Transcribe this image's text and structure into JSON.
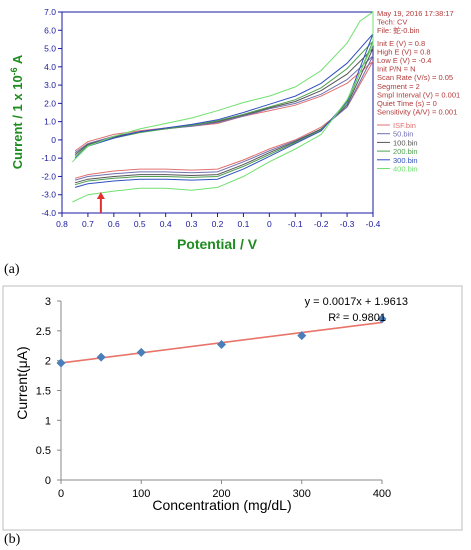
{
  "panel_labels": {
    "a": "(a)",
    "b": "(b)"
  },
  "chart_data": [
    {
      "type": "line",
      "title": "",
      "xlabel": "Potential / V",
      "ylabel": "Current / 1 x 10-6 A",
      "ylabel_parts": {
        "main": "Current / 1 x 10",
        "sup": "-6",
        "unit": " A"
      },
      "xlim": [
        0.8,
        -0.4
      ],
      "ylim": [
        -4.0,
        7.0
      ],
      "x_inverted": true,
      "xticks": [
        0.8,
        0.7,
        0.6,
        0.5,
        0.4,
        0.3,
        0.2,
        0.1,
        0,
        -0.1,
        -0.2,
        -0.3,
        -0.4
      ],
      "yticks": [
        7.0,
        6.0,
        5.0,
        4.0,
        3.0,
        2.0,
        1.0,
        0,
        -1.0,
        -2.0,
        -3.0,
        -4.0
      ],
      "xtick_labels": [
        "0.8",
        "0.7",
        "0.6",
        "0.5",
        "0.4",
        "0.3",
        "0.2",
        "0.1",
        "0",
        "-0.1",
        "-0.2",
        "-0.3",
        "-0.4"
      ],
      "ytick_labels": [
        "7.0",
        "6.0",
        "5.0",
        "4.0",
        "3.0",
        "2.0",
        "1.0",
        "0",
        "-1.0",
        "-2.0",
        "-3.0",
        "-4.0"
      ],
      "grid": false,
      "annotation_arrow": {
        "x": 0.65,
        "y_from": -4.0,
        "y_to": -2.85,
        "color": "#e03030"
      },
      "info_lines": [
        "May 19, 2016   17:38:17",
        "Tech: CV",
        "File: 蛇-0.bin",
        "",
        "Init E (V) = 0.8",
        "High E (V) = 0.8",
        "Low E (V) = -0.4",
        "Init P/N = N",
        "Scan Rate (V/s) = 0.05",
        "Segment = 2",
        "Smpl Interval (V) = 0.001",
        "Quiet Time (s) = 0",
        "Sensitivity (A/V) = 0.001"
      ],
      "legend_position": "right",
      "series": [
        {
          "name": "ISF.bin",
          "color": "#e07070",
          "x_switch": 0.75,
          "upper": [
            [
              0.75,
              -0.6
            ],
            [
              0.7,
              -0.1
            ],
            [
              0.6,
              0.3
            ],
            [
              0.5,
              0.5
            ],
            [
              0.4,
              0.65
            ],
            [
              0.3,
              0.75
            ],
            [
              0.2,
              0.9
            ],
            [
              0.1,
              1.3
            ],
            [
              0.0,
              1.6
            ],
            [
              -0.1,
              1.9
            ],
            [
              -0.2,
              2.4
            ],
            [
              -0.3,
              3.1
            ],
            [
              -0.4,
              4.3
            ]
          ],
          "lower": [
            [
              0.75,
              -2.1
            ],
            [
              0.7,
              -1.9
            ],
            [
              0.6,
              -1.7
            ],
            [
              0.5,
              -1.6
            ],
            [
              0.4,
              -1.6
            ],
            [
              0.3,
              -1.65
            ],
            [
              0.2,
              -1.6
            ],
            [
              0.1,
              -1.1
            ],
            [
              0.0,
              -0.5
            ],
            [
              -0.1,
              0.0
            ],
            [
              -0.2,
              0.7
            ],
            [
              -0.3,
              1.8
            ],
            [
              -0.4,
              4.3
            ]
          ]
        },
        {
          "name": "50.bin",
          "color": "#7070b0",
          "x_switch": 0.75,
          "upper": [
            [
              0.75,
              -0.7
            ],
            [
              0.7,
              -0.2
            ],
            [
              0.6,
              0.2
            ],
            [
              0.5,
              0.45
            ],
            [
              0.4,
              0.6
            ],
            [
              0.3,
              0.75
            ],
            [
              0.2,
              0.95
            ],
            [
              0.1,
              1.3
            ],
            [
              0.0,
              1.7
            ],
            [
              -0.1,
              2.0
            ],
            [
              -0.2,
              2.5
            ],
            [
              -0.3,
              3.3
            ],
            [
              -0.4,
              4.6
            ]
          ],
          "lower": [
            [
              0.75,
              -2.2
            ],
            [
              0.7,
              -2.0
            ],
            [
              0.6,
              -1.85
            ],
            [
              0.5,
              -1.75
            ],
            [
              0.4,
              -1.75
            ],
            [
              0.3,
              -1.8
            ],
            [
              0.2,
              -1.75
            ],
            [
              0.1,
              -1.2
            ],
            [
              0.0,
              -0.6
            ],
            [
              -0.1,
              -0.05
            ],
            [
              -0.2,
              0.6
            ],
            [
              -0.3,
              1.8
            ],
            [
              -0.4,
              4.6
            ]
          ]
        },
        {
          "name": "100.bin",
          "color": "#555555",
          "x_switch": 0.75,
          "upper": [
            [
              0.75,
              -0.8
            ],
            [
              0.7,
              -0.25
            ],
            [
              0.6,
              0.15
            ],
            [
              0.5,
              0.45
            ],
            [
              0.4,
              0.6
            ],
            [
              0.3,
              0.8
            ],
            [
              0.2,
              1.0
            ],
            [
              0.1,
              1.35
            ],
            [
              0.0,
              1.75
            ],
            [
              -0.1,
              2.1
            ],
            [
              -0.2,
              2.7
            ],
            [
              -0.3,
              3.6
            ],
            [
              -0.4,
              5.0
            ]
          ],
          "lower": [
            [
              0.75,
              -2.35
            ],
            [
              0.7,
              -2.15
            ],
            [
              0.6,
              -2.0
            ],
            [
              0.5,
              -1.9
            ],
            [
              0.4,
              -1.9
            ],
            [
              0.3,
              -1.95
            ],
            [
              0.2,
              -1.9
            ],
            [
              0.1,
              -1.35
            ],
            [
              0.0,
              -0.7
            ],
            [
              -0.1,
              -0.1
            ],
            [
              -0.2,
              0.6
            ],
            [
              -0.3,
              1.9
            ],
            [
              -0.4,
              5.0
            ]
          ]
        },
        {
          "name": "200.bin",
          "color": "#50a050",
          "x_switch": 0.75,
          "upper": [
            [
              0.75,
              -0.9
            ],
            [
              0.7,
              -0.3
            ],
            [
              0.6,
              0.1
            ],
            [
              0.5,
              0.4
            ],
            [
              0.4,
              0.6
            ],
            [
              0.3,
              0.8
            ],
            [
              0.2,
              1.05
            ],
            [
              0.1,
              1.4
            ],
            [
              0.0,
              1.8
            ],
            [
              -0.1,
              2.2
            ],
            [
              -0.2,
              2.85
            ],
            [
              -0.3,
              3.9
            ],
            [
              -0.4,
              5.4
            ]
          ],
          "lower": [
            [
              0.75,
              -2.45
            ],
            [
              0.7,
              -2.25
            ],
            [
              0.6,
              -2.1
            ],
            [
              0.5,
              -2.0
            ],
            [
              0.4,
              -2.0
            ],
            [
              0.3,
              -2.05
            ],
            [
              0.2,
              -2.0
            ],
            [
              0.1,
              -1.45
            ],
            [
              0.0,
              -0.8
            ],
            [
              -0.1,
              -0.15
            ],
            [
              -0.2,
              0.55
            ],
            [
              -0.3,
              2.0
            ],
            [
              -0.4,
              5.4
            ]
          ]
        },
        {
          "name": "300.bin",
          "color": "#3050c0",
          "x_switch": 0.75,
          "upper": [
            [
              0.75,
              -1.0
            ],
            [
              0.7,
              -0.35
            ],
            [
              0.6,
              0.1
            ],
            [
              0.5,
              0.45
            ],
            [
              0.4,
              0.65
            ],
            [
              0.3,
              0.85
            ],
            [
              0.2,
              1.1
            ],
            [
              0.1,
              1.5
            ],
            [
              0.0,
              1.95
            ],
            [
              -0.1,
              2.4
            ],
            [
              -0.2,
              3.1
            ],
            [
              -0.3,
              4.2
            ],
            [
              -0.4,
              5.8
            ]
          ],
          "lower": [
            [
              0.75,
              -2.6
            ],
            [
              0.7,
              -2.4
            ],
            [
              0.6,
              -2.25
            ],
            [
              0.5,
              -2.15
            ],
            [
              0.4,
              -2.15
            ],
            [
              0.3,
              -2.2
            ],
            [
              0.2,
              -2.15
            ],
            [
              0.1,
              -1.6
            ],
            [
              0.0,
              -0.9
            ],
            [
              -0.1,
              -0.2
            ],
            [
              -0.2,
              0.5
            ],
            [
              -0.3,
              2.1
            ],
            [
              -0.4,
              5.8
            ]
          ]
        },
        {
          "name": "400.bin",
          "color": "#70e070",
          "x_switch": 0.76,
          "upper": [
            [
              0.76,
              -1.2
            ],
            [
              0.7,
              -0.35
            ],
            [
              0.6,
              0.2
            ],
            [
              0.5,
              0.6
            ],
            [
              0.4,
              0.9
            ],
            [
              0.3,
              1.2
            ],
            [
              0.2,
              1.6
            ],
            [
              0.1,
              2.05
            ],
            [
              0.0,
              2.4
            ],
            [
              -0.1,
              2.9
            ],
            [
              -0.2,
              3.8
            ],
            [
              -0.3,
              5.3
            ],
            [
              -0.35,
              6.5
            ],
            [
              -0.4,
              7.0
            ]
          ],
          "lower": [
            [
              0.76,
              -3.4
            ],
            [
              0.7,
              -3.0
            ],
            [
              0.6,
              -2.8
            ],
            [
              0.5,
              -2.65
            ],
            [
              0.4,
              -2.65
            ],
            [
              0.3,
              -2.75
            ],
            [
              0.2,
              -2.6
            ],
            [
              0.1,
              -2.0
            ],
            [
              0.0,
              -1.2
            ],
            [
              -0.1,
              -0.5
            ],
            [
              -0.2,
              0.3
            ],
            [
              -0.3,
              2.2
            ],
            [
              -0.4,
              5.2
            ]
          ]
        }
      ]
    },
    {
      "type": "scatter",
      "title": "",
      "xlabel": "Concentration (mg/dL)",
      "ylabel": "Current(μA)",
      "xlim": [
        0,
        400
      ],
      "ylim": [
        0,
        3
      ],
      "xticks": [
        0,
        100,
        200,
        300,
        400
      ],
      "yticks": [
        0,
        0.5,
        1,
        1.5,
        2,
        2.5,
        3
      ],
      "xtick_labels": [
        "0",
        "100",
        "200",
        "300",
        "400"
      ],
      "ytick_labels": [
        "0",
        "0.5",
        "1",
        "1.5",
        "2",
        "2.5",
        "3"
      ],
      "grid": false,
      "marker_color": "#4a7ebb",
      "trendline_color": "#e8746a",
      "trendline": {
        "slope": 0.0017,
        "intercept": 1.9613
      },
      "equation_text": "y = 0.0017x + 1.9613",
      "r2_text": "R² = 0.9801",
      "series": [
        {
          "x": [
            0,
            50,
            100,
            200,
            300,
            400
          ],
          "y": [
            1.96,
            2.06,
            2.14,
            2.27,
            2.42,
            2.7
          ]
        }
      ]
    }
  ]
}
